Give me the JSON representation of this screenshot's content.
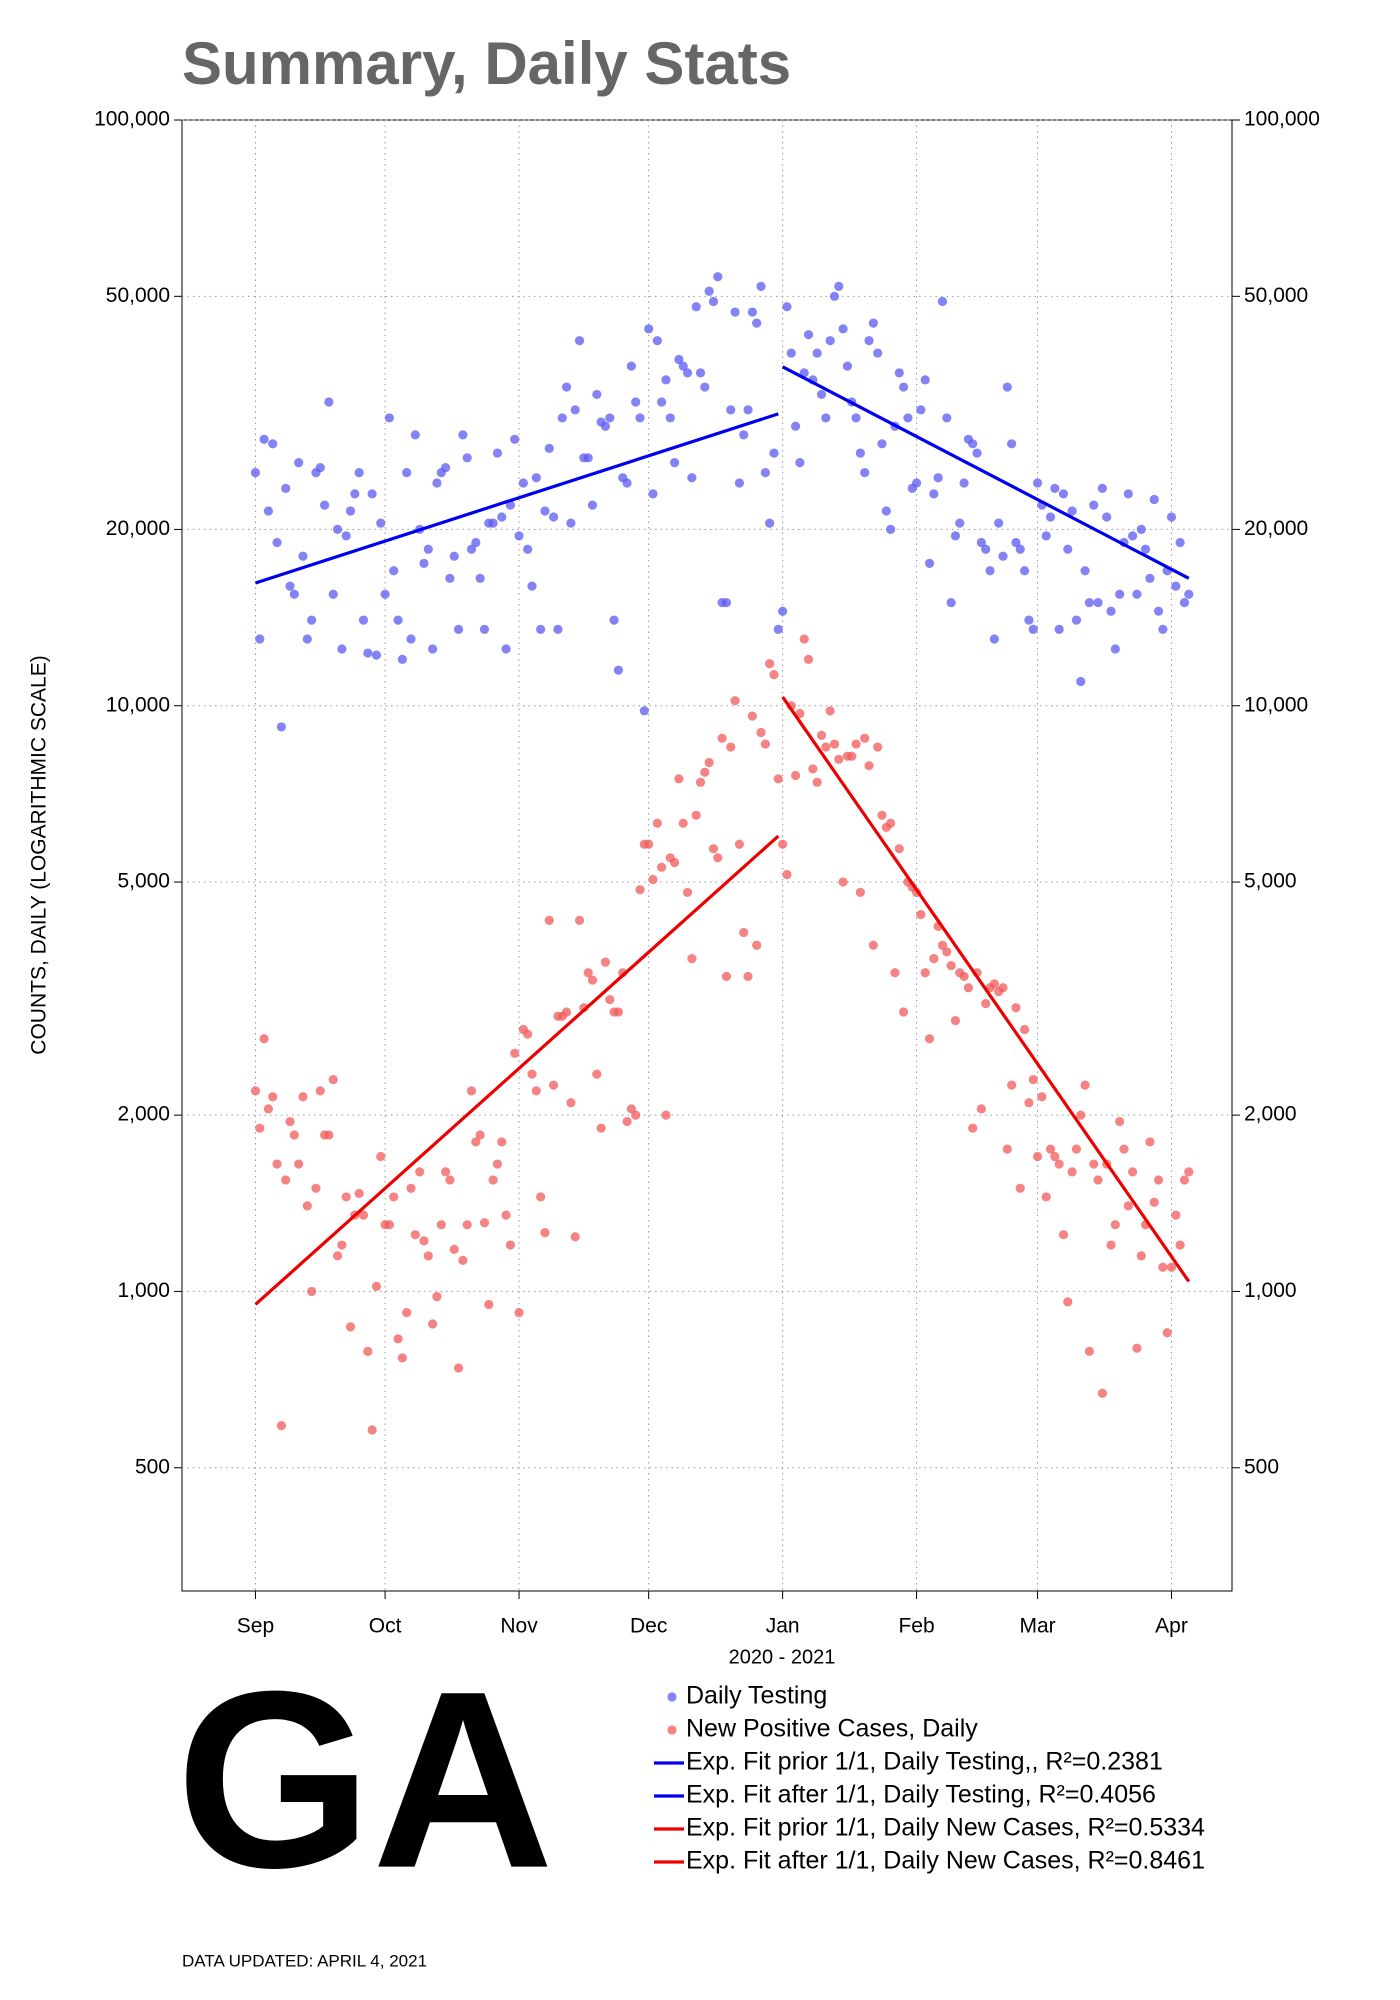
{
  "chart_data": {
    "type": "scatter",
    "title": "Summary, Daily Stats",
    "y_label": "COUNTS, DAILY (LOGARITHMIC SCALE)",
    "x_label": "2020 - 2021",
    "state": "GA",
    "footnote": "DATA UPDATED: APRIL 4, 2021",
    "log_y": true,
    "grid": true,
    "xlim": [
      -17,
      226
    ],
    "xticks": [
      {
        "value": 0,
        "label": "Sep"
      },
      {
        "value": 30,
        "label": "Oct"
      },
      {
        "value": 61,
        "label": "Nov"
      },
      {
        "value": 91,
        "label": "Dec"
      },
      {
        "value": 122,
        "label": "Jan"
      },
      {
        "value": 153,
        "label": "Feb"
      },
      {
        "value": 181,
        "label": "Mar"
      },
      {
        "value": 212,
        "label": "Apr"
      }
    ],
    "ylim": [
      308,
      100000
    ],
    "yticks": [
      500,
      {
        "value": 1000,
        "label": "1,000"
      },
      {
        "value": 2000,
        "label": "2,000"
      },
      {
        "value": 5000,
        "label": "5,000"
      },
      {
        "value": 10000,
        "label": "10,000"
      },
      {
        "value": 20000,
        "label": "20,000"
      },
      {
        "value": 50000,
        "label": "50,000"
      },
      {
        "value": 100000,
        "label": "100,000"
      }
    ],
    "x": [
      0,
      1,
      2,
      3,
      4,
      5,
      6,
      7,
      8,
      9,
      10,
      11,
      12,
      13,
      14,
      15,
      16,
      17,
      18,
      19,
      20,
      21,
      22,
      23,
      24,
      25,
      26,
      27,
      28,
      29,
      30,
      31,
      32,
      33,
      34,
      35,
      36,
      37,
      38,
      39,
      40,
      41,
      42,
      43,
      44,
      45,
      46,
      47,
      48,
      49,
      50,
      51,
      52,
      53,
      54,
      55,
      56,
      57,
      58,
      59,
      60,
      61,
      62,
      63,
      64,
      65,
      66,
      67,
      68,
      69,
      70,
      71,
      72,
      73,
      74,
      75,
      76,
      77,
      78,
      79,
      80,
      81,
      82,
      83,
      84,
      85,
      86,
      87,
      88,
      89,
      90,
      91,
      92,
      93,
      94,
      95,
      96,
      97,
      98,
      99,
      100,
      101,
      102,
      103,
      104,
      105,
      106,
      107,
      108,
      109,
      110,
      111,
      112,
      113,
      114,
      115,
      116,
      117,
      118,
      119,
      120,
      121,
      122,
      123,
      124,
      125,
      126,
      127,
      128,
      129,
      130,
      131,
      132,
      133,
      134,
      135,
      136,
      137,
      138,
      139,
      140,
      141,
      142,
      143,
      144,
      145,
      146,
      147,
      148,
      149,
      150,
      151,
      152,
      153,
      154,
      155,
      156,
      157,
      158,
      159,
      160,
      161,
      162,
      163,
      164,
      165,
      166,
      167,
      168,
      169,
      170,
      171,
      172,
      173,
      174,
      175,
      176,
      177,
      178,
      179,
      180,
      181,
      182,
      183,
      184,
      185,
      186,
      187,
      188,
      189,
      190,
      191,
      192,
      193,
      194,
      195,
      196,
      197,
      198,
      199,
      200,
      201,
      202,
      203,
      204,
      205,
      206,
      207,
      208,
      209,
      210,
      211,
      212,
      213,
      214,
      215,
      216
    ],
    "series": [
      {
        "name": "Daily Testing",
        "mode": "markers",
        "color": "#5a5af2",
        "values": [
          25000,
          13000,
          28500,
          21500,
          28000,
          19000,
          9200,
          23500,
          16000,
          15500,
          26000,
          18000,
          13000,
          14000,
          25000,
          25500,
          22000,
          33000,
          15500,
          20000,
          12500,
          19500,
          21500,
          23000,
          25000,
          14000,
          12300,
          23000,
          12200,
          20500,
          15500,
          31000,
          17000,
          14000,
          12000,
          25000,
          13000,
          29000,
          20000,
          17500,
          18500,
          12500,
          24000,
          25000,
          25500,
          16500,
          18000,
          13500,
          29000,
          26500,
          18500,
          19000,
          16500,
          13500,
          20500,
          20500,
          27000,
          21000,
          12500,
          22000,
          28500,
          19500,
          24000,
          18500,
          16000,
          24500,
          13500,
          21500,
          27500,
          21000,
          13500,
          31000,
          35000,
          20500,
          32000,
          42000,
          26500,
          26500,
          22000,
          34000,
          30500,
          30000,
          31000,
          14000,
          11500,
          24500,
          24000,
          38000,
          33000,
          31000,
          9800,
          44000,
          23000,
          42000,
          33000,
          36000,
          31000,
          26000,
          39000,
          38000,
          37000,
          24500,
          48000,
          37000,
          35000,
          51000,
          49000,
          54000,
          15000,
          15000,
          32000,
          47000,
          24000,
          29000,
          32000,
          47000,
          45000,
          52000,
          25000,
          20500,
          27000,
          13500,
          14500,
          48000,
          40000,
          30000,
          26000,
          37000,
          43000,
          36000,
          40000,
          34000,
          31000,
          42000,
          50000,
          52000,
          44000,
          38000,
          33000,
          31000,
          27000,
          25000,
          42000,
          45000,
          40000,
          28000,
          21500,
          20000,
          30000,
          37000,
          35000,
          31000,
          23500,
          24000,
          32000,
          36000,
          17500,
          23000,
          24500,
          49000,
          31000,
          15000,
          19500,
          20500,
          24000,
          28500,
          28000,
          27000,
          19000,
          18500,
          17000,
          13000,
          20500,
          18000,
          35000,
          28000,
          19000,
          18500,
          17000,
          14000,
          13500,
          24000,
          22000,
          19500,
          21000,
          23500,
          13500,
          23000,
          18500,
          21500,
          14000,
          11000,
          17000,
          15000,
          22000,
          15000,
          23500,
          21000,
          14500,
          12500,
          15500,
          19000,
          23000,
          19500,
          15500,
          20000,
          18500,
          16500,
          22500,
          14500,
          13500,
          17000,
          21000,
          16000,
          19000,
          15000,
          15500
        ]
      },
      {
        "name": "New Positive Cases, Daily",
        "mode": "markers",
        "color": "#f25a5a",
        "values": [
          2200,
          1900,
          2700,
          2050,
          2150,
          1650,
          590,
          1550,
          1950,
          1850,
          1650,
          2150,
          1400,
          1000,
          1500,
          2200,
          1850,
          1850,
          2300,
          1150,
          1200,
          1450,
          870,
          1350,
          1470,
          1350,
          790,
          580,
          1020,
          1700,
          1300,
          1300,
          1450,
          830,
          770,
          920,
          1500,
          1250,
          1600,
          1220,
          1150,
          880,
          980,
          1300,
          1600,
          1550,
          1180,
          740,
          1130,
          1300,
          2200,
          1800,
          1850,
          1310,
          950,
          1550,
          1650,
          1800,
          1350,
          1200,
          2550,
          920,
          2800,
          2750,
          2350,
          2200,
          1450,
          1260,
          4300,
          2250,
          2950,
          2950,
          3000,
          2100,
          1240,
          4300,
          3050,
          3500,
          3400,
          2350,
          1900,
          3650,
          3150,
          3000,
          3000,
          3500,
          1950,
          2050,
          2000,
          4850,
          5800,
          5800,
          5050,
          6300,
          5300,
          2000,
          5500,
          5400,
          7500,
          6300,
          4800,
          3700,
          6500,
          7400,
          7700,
          8000,
          5700,
          5500,
          8800,
          3450,
          8500,
          10200,
          5800,
          4100,
          3450,
          9600,
          3900,
          9000,
          8600,
          11800,
          11300,
          7500,
          5800,
          5150,
          10000,
          7600,
          9700,
          13000,
          12000,
          7800,
          7400,
          8900,
          8500,
          9800,
          8600,
          8100,
          5000,
          8200,
          8200,
          8600,
          4800,
          8800,
          7900,
          3900,
          8500,
          6500,
          6200,
          6300,
          3500,
          5700,
          3000,
          5000,
          4900,
          4800,
          4400,
          3500,
          2700,
          3700,
          4200,
          3900,
          3800,
          3600,
          2900,
          3500,
          3450,
          3300,
          1900,
          3500,
          2050,
          3100,
          3300,
          3350,
          3250,
          3300,
          1750,
          2250,
          3050,
          1500,
          2800,
          2100,
          2300,
          1700,
          2150,
          1450,
          1750,
          1700,
          1650,
          1250,
          960,
          1600,
          1750,
          2000,
          2250,
          790,
          1650,
          1550,
          670,
          1650,
          1200,
          1300,
          1950,
          1750,
          1400,
          1600,
          800,
          1150,
          1300,
          1800,
          1420,
          1550,
          1100,
          850,
          1100,
          1350,
          1200,
          1550,
          1600
        ]
      },
      {
        "name": "Exp. Fit prior 1/1, Daily Testing,, R²=0.2381",
        "mode": "lines",
        "color": "#0000ee",
        "x": [
          0,
          121
        ],
        "values": [
          16200,
          31500
        ]
      },
      {
        "name": "Exp. Fit after 1/1, Daily Testing, R²=0.4056",
        "mode": "lines",
        "color": "#0000ee",
        "x": [
          122,
          216
        ],
        "values": [
          37900,
          16500
        ]
      },
      {
        "name": "Exp. Fit prior 1/1, Daily New Cases, R²=0.5334",
        "mode": "lines",
        "color": "#ee0000",
        "x": [
          0,
          121
        ],
        "values": [
          950,
          5990
        ]
      },
      {
        "name": "Exp. Fit after 1/1, Daily New Cases, R²=0.8461",
        "mode": "lines",
        "color": "#ee0000",
        "x": [
          122,
          216
        ],
        "values": [
          10350,
          1040
        ]
      }
    ]
  }
}
